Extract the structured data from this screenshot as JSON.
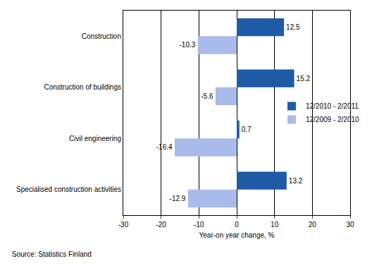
{
  "chart_data": {
    "type": "bar",
    "orientation": "horizontal",
    "categories": [
      "Construction",
      "Construction of buildings",
      "Civil engineering",
      "Specialised construction activities"
    ],
    "series": [
      {
        "name": "12/2010 - 2/2011",
        "color": "#1f5aa6",
        "values": [
          12.5,
          15.2,
          0.7,
          13.2
        ]
      },
      {
        "name": "12/2009 - 2/2010",
        "color": "#a9bbea",
        "values": [
          -10.3,
          -5.6,
          -16.4,
          -12.9
        ]
      }
    ],
    "x_label": "Year-on year change, %",
    "xlim": [
      -30,
      30
    ],
    "xticks": [
      -30,
      -20,
      -10,
      0,
      10,
      20,
      30
    ],
    "grid": true,
    "data_labels": true,
    "legend": "right",
    "source": "Source: Statistics Finland"
  }
}
